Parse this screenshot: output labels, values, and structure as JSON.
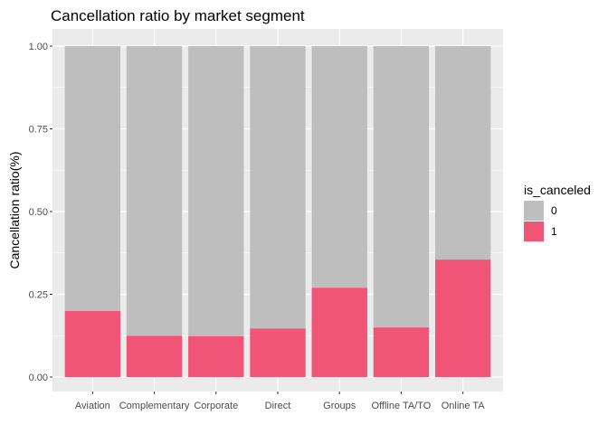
{
  "chart_data": {
    "type": "bar",
    "stacked": true,
    "title": "Cancellation ratio by market segment",
    "xlabel": "",
    "ylabel": "Cancellation ratio(%)",
    "ylim": [
      0,
      1
    ],
    "yticks": [
      "0.00",
      "0.25",
      "0.50",
      "0.75",
      "1.00"
    ],
    "categories": [
      "Aviation",
      "Complementary",
      "Corporate",
      "Direct",
      "Groups",
      "Offline TA/TO",
      "Online TA"
    ],
    "legend": {
      "title": "is_canceled",
      "position": "right"
    },
    "grid": true,
    "series": [
      {
        "name": "0",
        "color": "#bebebe",
        "values": [
          0.8,
          0.875,
          0.877,
          0.853,
          0.73,
          0.85,
          0.645
        ]
      },
      {
        "name": "1",
        "color": "#f05577",
        "values": [
          0.2,
          0.125,
          0.123,
          0.147,
          0.27,
          0.15,
          0.355
        ]
      }
    ]
  }
}
